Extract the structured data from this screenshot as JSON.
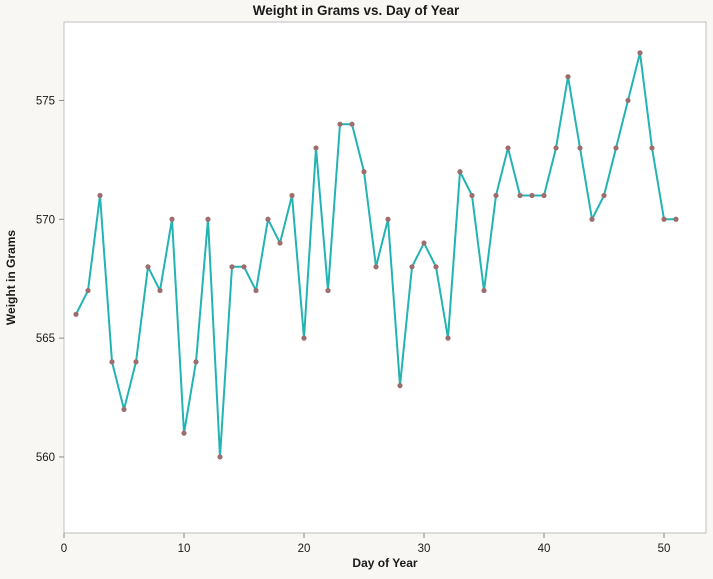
{
  "chart_data": {
    "type": "line",
    "title": "Weight in Grams vs. Day of Year",
    "xlabel": "Day of Year",
    "ylabel": "Weight in Grams",
    "x": [
      1,
      2,
      3,
      4,
      5,
      6,
      7,
      8,
      9,
      10,
      11,
      12,
      13,
      14,
      15,
      16,
      17,
      18,
      19,
      20,
      21,
      22,
      23,
      24,
      25,
      26,
      27,
      28,
      29,
      30,
      31,
      32,
      33,
      34,
      35,
      36,
      37,
      38,
      39,
      40,
      41,
      42,
      43,
      44,
      45,
      46,
      47,
      48,
      49,
      50,
      51
    ],
    "values": [
      566,
      567,
      571,
      564,
      562,
      564,
      568,
      567,
      570,
      561,
      564,
      570,
      560,
      568,
      568,
      567,
      570,
      569,
      571,
      565,
      573,
      567,
      574,
      574,
      572,
      568,
      570,
      563,
      568,
      569,
      568,
      565,
      572,
      571,
      567,
      571,
      573,
      571,
      571,
      571,
      573,
      576,
      573,
      570,
      571,
      573,
      575,
      577,
      573,
      570,
      570
    ],
    "xticks": [
      0,
      10,
      20,
      30,
      40,
      50
    ],
    "yticks": [
      560,
      565,
      570,
      575
    ],
    "xlim": [
      0,
      53.5
    ],
    "ylim": [
      556.8,
      578.3
    ],
    "grid": false,
    "legend": "none",
    "colors": {
      "line": "#24b3b3",
      "marker": "#9e6d6d",
      "figure_background": "#f8f7f3",
      "plot_background": "#ffffff",
      "frame": "#bfbfbf",
      "tick": "#8a8a8a",
      "text": "#1a1a1a"
    }
  }
}
